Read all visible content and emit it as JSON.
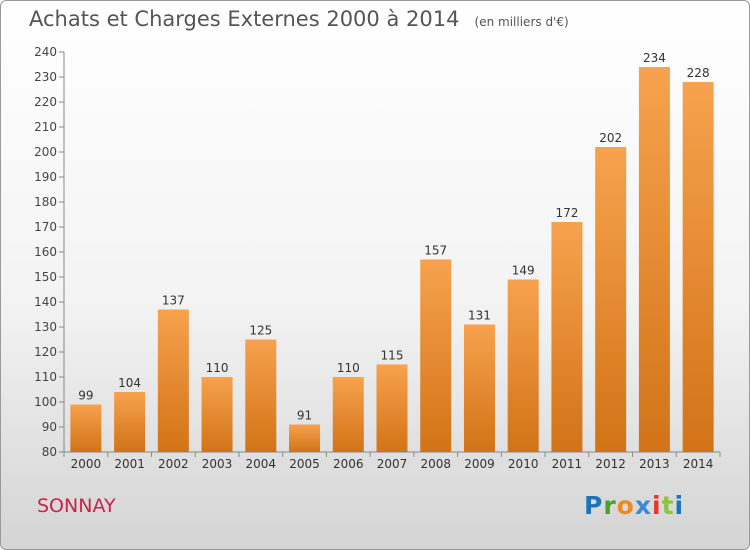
{
  "header": {
    "title": "Achats et Charges Externes 2000 à 2014",
    "unit": "(en milliers d'€)"
  },
  "footer": {
    "town": "SONNAY",
    "brand": [
      "P",
      "r",
      "o",
      "x",
      "i",
      "t",
      "i"
    ]
  },
  "colors": {
    "bar_top": "#f7a24e",
    "bar_bottom": "#d27317",
    "town": "#c8244a",
    "brand": [
      "#1b75bb",
      "#4aa02c",
      "#f08a1c",
      "#3a8ad6",
      "#e6352b",
      "#8cc63f",
      "#1b75bb"
    ]
  },
  "chart_data": {
    "type": "bar",
    "categories": [
      "2000",
      "2001",
      "2002",
      "2003",
      "2004",
      "2005",
      "2006",
      "2007",
      "2008",
      "2009",
      "2010",
      "2011",
      "2012",
      "2013",
      "2014"
    ],
    "values": [
      99,
      104,
      137,
      110,
      125,
      91,
      110,
      115,
      157,
      131,
      149,
      172,
      202,
      234,
      228
    ],
    "ylim": [
      80,
      240
    ],
    "yticks": [
      80,
      90,
      100,
      110,
      120,
      130,
      140,
      150,
      160,
      170,
      180,
      190,
      200,
      210,
      220,
      230,
      240
    ],
    "grid": false,
    "legend": "none"
  }
}
